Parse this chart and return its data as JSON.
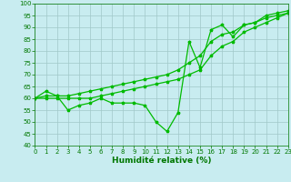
{
  "xlabel": "Humidité relative (%)",
  "background_color": "#c8ecf0",
  "grid_color": "#a0c8c8",
  "line_color": "#00bb00",
  "ylim": [
    40,
    100
  ],
  "xlim": [
    0,
    23
  ],
  "yticks": [
    40,
    45,
    50,
    55,
    60,
    65,
    70,
    75,
    80,
    85,
    90,
    95,
    100
  ],
  "xticks": [
    0,
    1,
    2,
    3,
    4,
    5,
    6,
    7,
    8,
    9,
    10,
    11,
    12,
    13,
    14,
    15,
    16,
    17,
    18,
    19,
    20,
    21,
    22,
    23
  ],
  "series1_x": [
    0,
    1,
    2,
    3,
    4,
    5,
    6,
    7,
    8,
    9,
    10,
    11,
    12,
    13,
    14,
    15,
    16,
    17,
    18,
    19,
    20,
    21,
    22,
    23
  ],
  "series1_y": [
    60,
    63,
    61,
    55,
    57,
    58,
    60,
    58,
    58,
    58,
    57,
    50,
    46,
    54,
    84,
    73,
    89,
    91,
    86,
    91,
    92,
    95,
    96,
    97
  ],
  "series2_x": [
    0,
    1,
    2,
    3,
    4,
    5,
    6,
    7,
    8,
    9,
    10,
    11,
    12,
    13,
    14,
    15,
    16,
    17,
    18,
    19,
    20,
    21,
    22,
    23
  ],
  "series2_y": [
    60,
    61,
    61,
    61,
    62,
    63,
    64,
    65,
    66,
    67,
    68,
    69,
    70,
    72,
    75,
    78,
    84,
    87,
    88,
    91,
    92,
    94,
    95,
    96
  ],
  "series3_x": [
    0,
    1,
    2,
    3,
    4,
    5,
    6,
    7,
    8,
    9,
    10,
    11,
    12,
    13,
    14,
    15,
    16,
    17,
    18,
    19,
    20,
    21,
    22,
    23
  ],
  "series3_y": [
    60,
    60,
    60,
    60,
    60,
    60,
    61,
    62,
    63,
    64,
    65,
    66,
    67,
    68,
    70,
    72,
    78,
    82,
    84,
    88,
    90,
    92,
    94,
    96
  ],
  "tick_color": "#007700",
  "tick_fontsize": 5.0,
  "xlabel_fontsize": 6.5,
  "linewidth": 0.9,
  "markersize": 2.5
}
